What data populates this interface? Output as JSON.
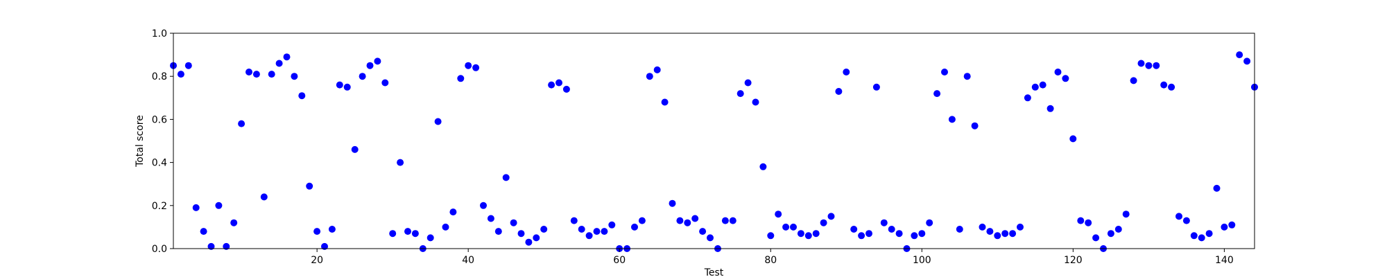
{
  "chart_data": {
    "type": "scatter",
    "title": "",
    "xlabel": "Test",
    "ylabel": "Total score",
    "xlim": [
      1,
      144
    ],
    "ylim": [
      0.0,
      1.0
    ],
    "x_ticks": [
      20,
      40,
      60,
      80,
      100,
      120,
      140
    ],
    "y_ticks": [
      0.0,
      0.2,
      0.4,
      0.6,
      0.8,
      1.0
    ],
    "y_tick_labels": [
      "0.0",
      "0.2",
      "0.4",
      "0.6",
      "0.8",
      "1.0"
    ],
    "grid": false,
    "marker_color": "#0000ff",
    "series": [
      {
        "points": [
          [
            1,
            0.85
          ],
          [
            2,
            0.81
          ],
          [
            3,
            0.85
          ],
          [
            4,
            0.19
          ],
          [
            5,
            0.08
          ],
          [
            6,
            0.01
          ],
          [
            7,
            0.2
          ],
          [
            8,
            0.01
          ],
          [
            9,
            0.12
          ],
          [
            10,
            0.58
          ],
          [
            11,
            0.82
          ],
          [
            12,
            0.81
          ],
          [
            13,
            0.24
          ],
          [
            14,
            0.81
          ],
          [
            15,
            0.86
          ],
          [
            16,
            0.89
          ],
          [
            17,
            0.8
          ],
          [
            18,
            0.71
          ],
          [
            19,
            0.29
          ],
          [
            20,
            0.08
          ],
          [
            21,
            0.01
          ],
          [
            22,
            0.09
          ],
          [
            23,
            0.76
          ],
          [
            24,
            0.75
          ],
          [
            25,
            0.46
          ],
          [
            26,
            0.8
          ],
          [
            27,
            0.85
          ],
          [
            28,
            0.87
          ],
          [
            29,
            0.77
          ],
          [
            30,
            0.07
          ],
          [
            31,
            0.4
          ],
          [
            32,
            0.08
          ],
          [
            33,
            0.07
          ],
          [
            34,
            0.0
          ],
          [
            35,
            0.05
          ],
          [
            36,
            0.59
          ],
          [
            37,
            0.1
          ],
          [
            38,
            0.17
          ],
          [
            39,
            0.79
          ],
          [
            40,
            0.85
          ],
          [
            41,
            0.84
          ],
          [
            42,
            0.2
          ],
          [
            43,
            0.14
          ],
          [
            44,
            0.08
          ],
          [
            45,
            0.33
          ],
          [
            46,
            0.12
          ],
          [
            47,
            0.07
          ],
          [
            48,
            0.03
          ],
          [
            49,
            0.05
          ],
          [
            50,
            0.09
          ],
          [
            51,
            0.76
          ],
          [
            52,
            0.77
          ],
          [
            53,
            0.74
          ],
          [
            54,
            0.13
          ],
          [
            55,
            0.09
          ],
          [
            56,
            0.06
          ],
          [
            57,
            0.08
          ],
          [
            58,
            0.08
          ],
          [
            59,
            0.11
          ],
          [
            60,
            0.0
          ],
          [
            61,
            0.0
          ],
          [
            62,
            0.1
          ],
          [
            63,
            0.13
          ],
          [
            64,
            0.8
          ],
          [
            65,
            0.83
          ],
          [
            66,
            0.68
          ],
          [
            67,
            0.21
          ],
          [
            68,
            0.13
          ],
          [
            69,
            0.12
          ],
          [
            70,
            0.14
          ],
          [
            71,
            0.08
          ],
          [
            72,
            0.05
          ],
          [
            73,
            0.0
          ],
          [
            74,
            0.13
          ],
          [
            75,
            0.13
          ],
          [
            76,
            0.72
          ],
          [
            77,
            0.77
          ],
          [
            78,
            0.68
          ],
          [
            79,
            0.38
          ],
          [
            80,
            0.06
          ],
          [
            81,
            0.16
          ],
          [
            82,
            0.1
          ],
          [
            83,
            0.1
          ],
          [
            84,
            0.07
          ],
          [
            85,
            0.06
          ],
          [
            86,
            0.07
          ],
          [
            87,
            0.12
          ],
          [
            88,
            0.15
          ],
          [
            89,
            0.73
          ],
          [
            90,
            0.82
          ],
          [
            91,
            0.09
          ],
          [
            92,
            0.06
          ],
          [
            93,
            0.07
          ],
          [
            94,
            0.75
          ],
          [
            95,
            0.12
          ],
          [
            96,
            0.09
          ],
          [
            97,
            0.07
          ],
          [
            98,
            0.0
          ],
          [
            99,
            0.06
          ],
          [
            100,
            0.07
          ],
          [
            101,
            0.12
          ],
          [
            102,
            0.72
          ],
          [
            103,
            0.82
          ],
          [
            104,
            0.6
          ],
          [
            105,
            0.09
          ],
          [
            106,
            0.8
          ],
          [
            107,
            0.57
          ],
          [
            108,
            0.1
          ],
          [
            109,
            0.08
          ],
          [
            110,
            0.06
          ],
          [
            111,
            0.07
          ],
          [
            112,
            0.07
          ],
          [
            113,
            0.1
          ],
          [
            114,
            0.7
          ],
          [
            115,
            0.75
          ],
          [
            116,
            0.76
          ],
          [
            117,
            0.65
          ],
          [
            118,
            0.82
          ],
          [
            119,
            0.79
          ],
          [
            120,
            0.51
          ],
          [
            121,
            0.13
          ],
          [
            122,
            0.12
          ],
          [
            123,
            0.05
          ],
          [
            124,
            0.0
          ],
          [
            125,
            0.07
          ],
          [
            126,
            0.09
          ],
          [
            127,
            0.16
          ],
          [
            128,
            0.78
          ],
          [
            129,
            0.86
          ],
          [
            130,
            0.85
          ],
          [
            131,
            0.85
          ],
          [
            132,
            0.76
          ],
          [
            133,
            0.75
          ],
          [
            134,
            0.15
          ],
          [
            135,
            0.13
          ],
          [
            136,
            0.06
          ],
          [
            137,
            0.05
          ],
          [
            138,
            0.07
          ],
          [
            139,
            0.28
          ],
          [
            140,
            0.1
          ],
          [
            141,
            0.11
          ],
          [
            142,
            0.9
          ],
          [
            143,
            0.87
          ],
          [
            144,
            0.75
          ]
        ]
      }
    ]
  }
}
